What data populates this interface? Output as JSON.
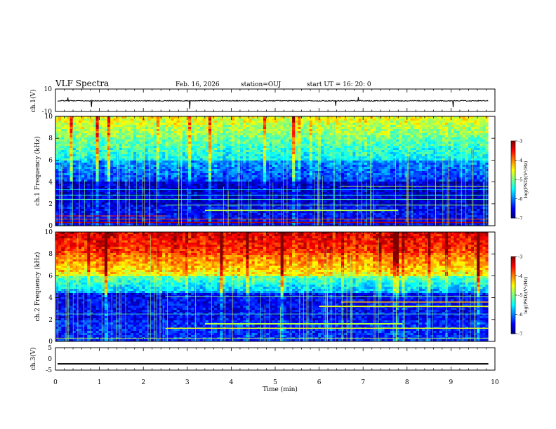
{
  "header": {
    "title": "VLF Spectra",
    "date": "Feb. 16, 2026",
    "station": "station=OUJ",
    "start": "start UT =  16: 20: 0"
  },
  "chart_data": [
    {
      "type": "line",
      "title": "",
      "ylabel": "ch.1(V)",
      "xlim": [
        0,
        10
      ],
      "ylim": [
        -10,
        10
      ],
      "y_ticks": [
        "10",
        "-10"
      ],
      "description_value": "broadband waveform near -0.5 V with small spikes",
      "series": [
        {
          "name": "ch.1",
          "mean": -0.5,
          "amplitude": 0.8
        }
      ]
    },
    {
      "type": "heatmap",
      "ylabel": "ch.1 Frequency (kHz)",
      "xlim": [
        0,
        10
      ],
      "ylim": [
        0,
        10
      ],
      "y_ticks": [
        "0",
        "2",
        "4",
        "6",
        "8",
        "10"
      ],
      "colorbar": {
        "label": "log(PSD)(V²/Hz)",
        "ticks": [
          "-3",
          "-4",
          "-5",
          "-6",
          "-7"
        ],
        "range": [
          -7,
          -3
        ]
      }
    },
    {
      "type": "heatmap",
      "ylabel": "ch.2 Frequency (kHz)",
      "xlim": [
        0,
        10
      ],
      "ylim": [
        0,
        10
      ],
      "y_ticks": [
        "0",
        "2",
        "4",
        "6",
        "8",
        "10"
      ],
      "colorbar": {
        "label": "log(PSD)(V²/Hz)",
        "ticks": [
          "-3",
          "-4",
          "-5",
          "-6",
          "-7"
        ],
        "range": [
          -7,
          -3
        ]
      }
    },
    {
      "type": "line",
      "ylabel": "ch.3(V)",
      "xlim": [
        0,
        10
      ],
      "ylim": [
        -5,
        5
      ],
      "y_ticks": [
        "5",
        "0",
        "-5"
      ],
      "series": [
        {
          "name": "ch.3",
          "mean": -2.2,
          "amplitude": 0.3
        }
      ]
    }
  ],
  "xaxis": {
    "label": "Time (min)",
    "ticks": [
      "0",
      "1",
      "2",
      "3",
      "4",
      "5",
      "6",
      "7",
      "8",
      "9",
      "10"
    ],
    "data_end_min": 9.85
  },
  "colors": {
    "frame": "#000000",
    "cold": "#00007f",
    "hot": "#ff0000"
  }
}
